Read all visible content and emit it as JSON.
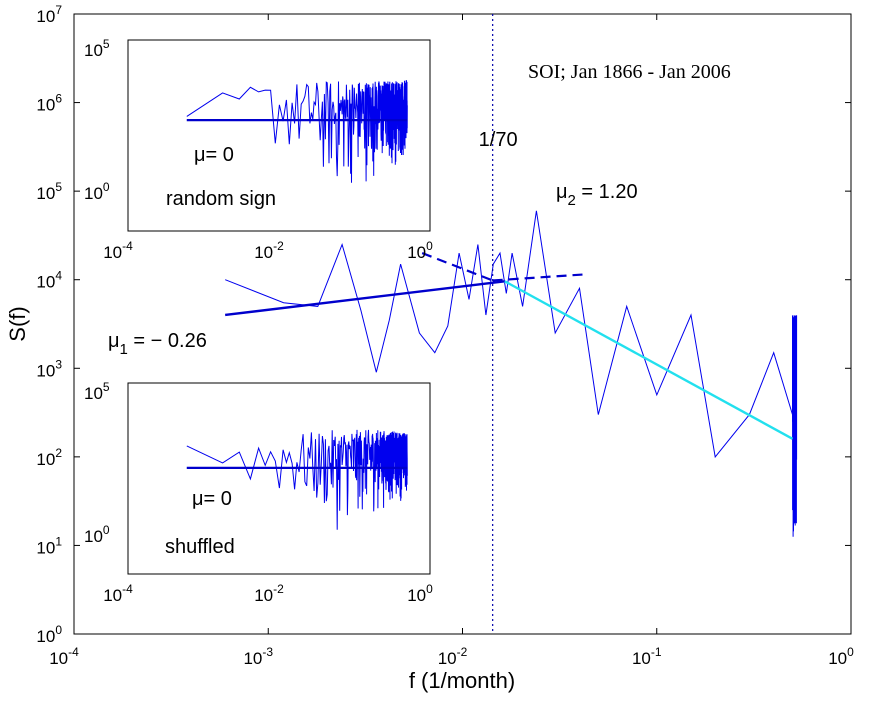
{
  "chart_data": [
    {
      "type": "line",
      "title": "",
      "annotation_title": "SOI; Jan 1866 - Jan 2006",
      "xlabel": "f (1/month)",
      "ylabel": "S(f)",
      "xscale": "log",
      "yscale": "log",
      "xlim": [
        0.0001,
        1
      ],
      "ylim": [
        1,
        10000000
      ],
      "x_tick_exponents": [
        -4,
        -3,
        -2,
        -1,
        0
      ],
      "y_tick_exponents": [
        0,
        1,
        2,
        3,
        4,
        5,
        6,
        7
      ],
      "tick_base": "10",
      "grid": false,
      "colors": {
        "spectrum": "#0000ee",
        "fit_low": "#0000cc",
        "fit_high": "#22e0ee",
        "guide": "#0000aa"
      },
      "crossover": {
        "x": 0.0143,
        "label": "1/70"
      },
      "fits": [
        {
          "label_prefix": "μ",
          "label_sub": "1",
          "label_value": " = − 0.26",
          "x_start": 0.0006,
          "x_end": 0.0165,
          "y_start": 4000,
          "y_end": 9600
        },
        {
          "label_prefix": "μ",
          "label_sub": "2",
          "label_value": " = 1.20",
          "x_start": 0.0165,
          "x_end": 0.5,
          "y_start": 9600,
          "y_end": 160
        }
      ],
      "dashed_lines": [
        {
          "x": [
            0.0062,
            0.0143
          ],
          "y": [
            20000,
            9800
          ]
        },
        {
          "x": [
            0.0143,
            0.043
          ],
          "y": [
            9800,
            11500
          ]
        }
      ],
      "spectrum_anchor_points": {
        "x": [
          0.0006,
          0.0012,
          0.0018,
          0.0024,
          0.003,
          0.0036,
          0.0042,
          0.0048,
          0.006,
          0.0072,
          0.0084,
          0.0096,
          0.0108,
          0.012,
          0.0132,
          0.0144,
          0.0156,
          0.0168,
          0.018,
          0.0204,
          0.024,
          0.03,
          0.04,
          0.05,
          0.07,
          0.1,
          0.15,
          0.2,
          0.3,
          0.4,
          0.5
        ],
        "y": [
          10000,
          5500,
          5000,
          25000,
          4500,
          900,
          3500,
          15000,
          2500,
          1500,
          3000,
          20000,
          6000,
          25000,
          4000,
          15000,
          20000,
          7000,
          20000,
          5000,
          60000,
          2500,
          8000,
          300,
          5000,
          500,
          4000,
          100,
          300,
          1500,
          300
        ]
      },
      "spectrum_envelope": {
        "x": [
          0.0006,
          0.001,
          0.002,
          0.004,
          0.008,
          0.016,
          0.03,
          0.06,
          0.12,
          0.25,
          0.5
        ],
        "y_upper": [
          10000,
          20000,
          28000,
          30000,
          30000,
          40000,
          50000,
          30000,
          15000,
          5000,
          4000
        ],
        "y_lower": [
          4000,
          2000,
          900,
          700,
          1000,
          2000,
          500,
          80,
          20,
          3,
          10
        ]
      }
    },
    {
      "type": "line",
      "inset": "top-left",
      "label": "random sign",
      "mu_text": "μ= 0",
      "xscale": "log",
      "yscale": "log",
      "xlim": [
        0.0001,
        1
      ],
      "ylim": [
        1,
        100000
      ],
      "x_tick_exponents": [
        -4,
        -2,
        0
      ],
      "y_tick_exponents": [
        0,
        5
      ],
      "fit": {
        "x": [
          0.0006,
          0.5
        ],
        "y": [
          800,
          800
        ]
      },
      "spectrum_envelope": {
        "x": [
          0.0006,
          0.002,
          0.006,
          0.02,
          0.06,
          0.2,
          0.5
        ],
        "y_upper": [
          1000,
          5000,
          8000,
          8000,
          9000,
          9000,
          9000
        ],
        "y_lower": [
          800,
          300,
          80,
          20,
          5,
          20,
          50
        ]
      }
    },
    {
      "type": "line",
      "inset": "bottom-left",
      "label": "shuffled",
      "mu_text": "μ= 0",
      "xscale": "log",
      "yscale": "log",
      "xlim": [
        0.0001,
        1
      ],
      "ylim": [
        1,
        100000
      ],
      "x_tick_exponents": [
        -4,
        -2,
        0
      ],
      "y_tick_exponents": [
        0,
        5
      ],
      "fit": {
        "x": [
          0.0006,
          0.5
        ],
        "y": [
          600,
          600
        ]
      },
      "spectrum_envelope": {
        "x": [
          0.0006,
          0.002,
          0.006,
          0.02,
          0.06,
          0.2,
          0.5
        ],
        "y_upper": [
          4000,
          2000,
          4000,
          5000,
          6000,
          6000,
          5000
        ],
        "y_lower": [
          600,
          200,
          50,
          20,
          10,
          30,
          80
        ]
      }
    }
  ]
}
